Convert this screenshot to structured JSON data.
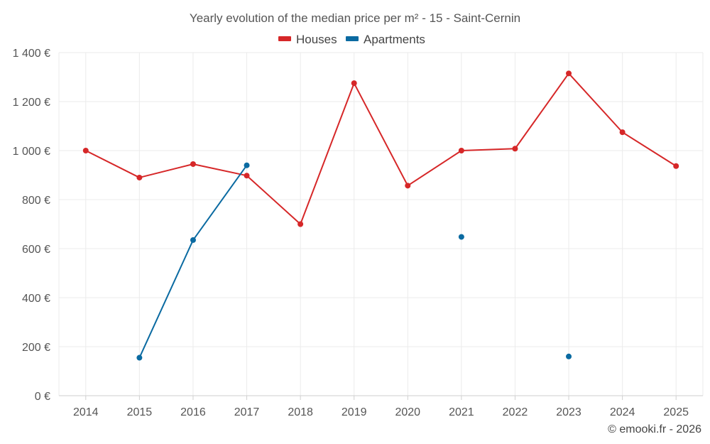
{
  "chart_data": {
    "type": "line",
    "title": "Yearly evolution of the median price per m² - 15 - Saint-Cernin",
    "categories": [
      "2014",
      "2015",
      "2016",
      "2017",
      "2018",
      "2019",
      "2020",
      "2021",
      "2022",
      "2023",
      "2024",
      "2025"
    ],
    "series": [
      {
        "name": "Houses",
        "color": "#d62728",
        "values": [
          1000,
          890,
          945,
          898,
          700,
          1275,
          857,
          1000,
          1008,
          1315,
          1075,
          937
        ]
      },
      {
        "name": "Apartments",
        "color": "#0a6aa1",
        "values": [
          null,
          155,
          635,
          940,
          null,
          null,
          null,
          648,
          null,
          160,
          null,
          null
        ]
      }
    ],
    "ylim": [
      0,
      1400
    ],
    "yticks": [
      0,
      200,
      400,
      600,
      800,
      1000,
      1200,
      1400
    ],
    "ytick_labels": [
      "0 €",
      "200 €",
      "400 €",
      "600 €",
      "800 €",
      "1 000 €",
      "1 200 €",
      "1 400 €"
    ],
    "xlabel": "",
    "ylabel": "",
    "grid": true,
    "legend_position": "top-center"
  },
  "credit": "© emooki.fr - 2026"
}
